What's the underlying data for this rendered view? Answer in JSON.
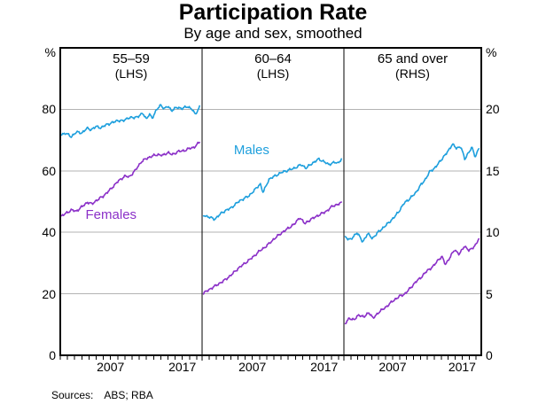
{
  "title": "Participation Rate",
  "subtitle": "By age and sex, smoothed",
  "footer": {
    "sources_label": "Sources:",
    "sources_value": "ABS; RBA"
  },
  "axes": {
    "left_unit": "%",
    "right_unit": "%",
    "left_ticks": [
      0,
      20,
      40,
      60,
      80
    ],
    "right_ticks": [
      0,
      5,
      10,
      15,
      20
    ],
    "left_range": [
      0,
      100
    ],
    "right_range": [
      0,
      25
    ],
    "x_range": [
      2000,
      2019.75
    ],
    "x_labeled_years": [
      2007,
      2017
    ],
    "grid_values_lhs": [
      20,
      40,
      60,
      80
    ]
  },
  "colors": {
    "males": "#1d9fdd",
    "females": "#8b30c8",
    "grid": "#b3b3b3",
    "axis": "#000000"
  },
  "annotations": [
    {
      "panel": 0,
      "text": "Females",
      "year": 2007.1,
      "value_lhs": 45.6,
      "color": "females"
    },
    {
      "panel": 1,
      "text": "Males",
      "year": 2006.9,
      "value_lhs": 66.6,
      "color": "males"
    }
  ],
  "chart_data": [
    {
      "type": "line",
      "panel": "55–59",
      "scale_label": "(LHS)",
      "axis": "LHS",
      "series": [
        {
          "name": "Males",
          "x": [
            2000.2,
            2000.8,
            2001.5,
            2002.2,
            2003.0,
            2003.7,
            2004.3,
            2005.0,
            2005.7,
            2006.4,
            2007.2,
            2008.0,
            2008.7,
            2009.4,
            2010.2,
            2011.0,
            2011.5,
            2012.0,
            2012.4,
            2012.8,
            2013.4,
            2014.0,
            2014.5,
            2015.0,
            2015.5,
            2016.2,
            2017.0,
            2017.7,
            2018.3,
            2018.8,
            2019.4
          ],
          "y": [
            71.8,
            72.3,
            71.0,
            72.6,
            72.3,
            73.8,
            73.4,
            74.4,
            74.0,
            75.0,
            75.6,
            76.4,
            76.2,
            77.2,
            77.3,
            77.8,
            78.8,
            76.8,
            78.4,
            77.2,
            79.8,
            81.4,
            80.2,
            81.0,
            79.6,
            80.6,
            80.3,
            80.9,
            80.2,
            78.3,
            80.8
          ]
        },
        {
          "name": "Females",
          "x": [
            2000.2,
            2001.0,
            2001.6,
            2002.2,
            2003.0,
            2003.8,
            2004.4,
            2005.0,
            2006.0,
            2007.0,
            2008.0,
            2009.0,
            2009.6,
            2010.4,
            2011.3,
            2012.0,
            2012.8,
            2013.6,
            2014.3,
            2015.0,
            2015.6,
            2016.4,
            2017.2,
            2018.0,
            2018.6,
            2019.4
          ],
          "y": [
            45.3,
            46.5,
            47.3,
            46.8,
            48.3,
            49.8,
            49.2,
            50.3,
            51.8,
            54.0,
            56.5,
            58.3,
            58.0,
            60.0,
            63.0,
            64.0,
            64.8,
            65.3,
            65.0,
            66.0,
            65.2,
            66.3,
            66.5,
            67.3,
            67.6,
            69.3
          ]
        }
      ]
    },
    {
      "type": "line",
      "panel": "60–64",
      "scale_label": "(LHS)",
      "axis": "LHS",
      "series": [
        {
          "name": "Males",
          "x": [
            2000.2,
            2001.0,
            2001.8,
            2002.8,
            2004.0,
            2005.2,
            2006.5,
            2007.5,
            2008.1,
            2008.5,
            2009.3,
            2010.2,
            2011.2,
            2012.0,
            2012.8,
            2013.8,
            2014.5,
            2015.2,
            2016.2,
            2017.0,
            2017.6,
            2018.4,
            2018.9,
            2019.4
          ],
          "y": [
            45.6,
            44.9,
            44.3,
            46.5,
            47.9,
            50.2,
            51.8,
            54.2,
            55.8,
            52.9,
            57.2,
            58.4,
            59.6,
            60.2,
            60.8,
            62.0,
            60.9,
            62.2,
            63.8,
            63.0,
            62.0,
            62.8,
            62.4,
            63.9
          ]
        },
        {
          "name": "Females",
          "x": [
            2000.2,
            2001.0,
            2002.0,
            2003.0,
            2004.0,
            2005.0,
            2006.0,
            2007.0,
            2008.0,
            2009.0,
            2010.0,
            2011.0,
            2012.0,
            2013.0,
            2013.6,
            2014.3,
            2015.0,
            2016.0,
            2016.6,
            2017.4,
            2018.2,
            2018.8,
            2019.4
          ],
          "y": [
            20.2,
            21.4,
            22.8,
            24.2,
            26.0,
            28.2,
            30.0,
            31.8,
            33.9,
            35.6,
            37.8,
            39.7,
            41.3,
            43.0,
            44.9,
            42.8,
            44.0,
            45.3,
            46.0,
            47.0,
            48.6,
            49.0,
            49.6
          ]
        }
      ]
    },
    {
      "type": "line",
      "panel": "65 and over",
      "scale_label": "(RHS)",
      "axis": "RHS",
      "series": [
        {
          "name": "Males",
          "x": [
            2000.2,
            2001.0,
            2001.9,
            2002.7,
            2003.4,
            2004.1,
            2004.9,
            2006.1,
            2007.2,
            2007.9,
            2008.7,
            2009.4,
            2010.3,
            2011.0,
            2011.7,
            2012.3,
            2013.0,
            2013.6,
            2014.4,
            2015.0,
            2015.6,
            2016.2,
            2016.8,
            2017.4,
            2017.9,
            2018.4,
            2018.9,
            2019.4
          ],
          "y": [
            9.6,
            9.4,
            10.0,
            9.2,
            9.9,
            9.5,
            10.0,
            10.6,
            11.2,
            11.7,
            12.4,
            12.7,
            13.2,
            13.8,
            14.3,
            14.9,
            15.2,
            15.6,
            16.2,
            16.6,
            17.2,
            16.8,
            17.0,
            15.9,
            16.5,
            16.9,
            16.1,
            16.9
          ]
        },
        {
          "name": "Females",
          "x": [
            2000.2,
            2000.8,
            2001.5,
            2002.2,
            2002.9,
            2003.6,
            2004.2,
            2005.0,
            2006.0,
            2007.0,
            2008.0,
            2008.8,
            2009.6,
            2010.4,
            2011.2,
            2012.0,
            2012.8,
            2013.6,
            2014.1,
            2014.6,
            2015.3,
            2015.9,
            2016.6,
            2017.3,
            2018.0,
            2018.6,
            2019.0,
            2019.4
          ],
          "y": [
            2.6,
            3.0,
            2.9,
            3.3,
            3.1,
            3.5,
            3.0,
            3.5,
            3.9,
            4.4,
            4.8,
            5.0,
            5.5,
            6.0,
            6.4,
            6.9,
            7.2,
            7.8,
            8.0,
            7.4,
            8.0,
            8.6,
            8.2,
            8.9,
            8.5,
            8.8,
            9.0,
            9.5
          ]
        }
      ]
    }
  ]
}
